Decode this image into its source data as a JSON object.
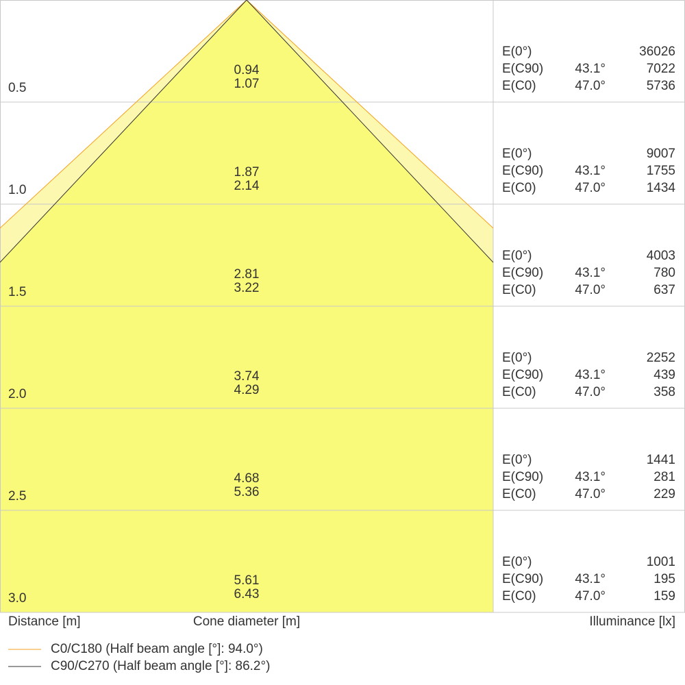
{
  "rows": [
    {
      "distance": "0.5",
      "diameters": [
        "0.94",
        "1.07"
      ],
      "illuminance": [
        {
          "label": "E(0°)",
          "value": "36026"
        },
        {
          "label": "E(C90)",
          "angle": "43.1°",
          "value": "7022"
        },
        {
          "label": "E(C0)",
          "angle": "47.0°",
          "value": "5736"
        }
      ]
    },
    {
      "distance": "1.0",
      "diameters": [
        "1.87",
        "2.14"
      ],
      "illuminance": [
        {
          "label": "E(0°)",
          "value": "9007"
        },
        {
          "label": "E(C90)",
          "angle": "43.1°",
          "value": "1755"
        },
        {
          "label": "E(C0)",
          "angle": "47.0°",
          "value": "1434"
        }
      ]
    },
    {
      "distance": "1.5",
      "diameters": [
        "2.81",
        "3.22"
      ],
      "illuminance": [
        {
          "label": "E(0°)",
          "value": "4003"
        },
        {
          "label": "E(C90)",
          "angle": "43.1°",
          "value": "780"
        },
        {
          "label": "E(C0)",
          "angle": "47.0°",
          "value": "637"
        }
      ]
    },
    {
      "distance": "2.0",
      "diameters": [
        "3.74",
        "4.29"
      ],
      "illuminance": [
        {
          "label": "E(0°)",
          "value": "2252"
        },
        {
          "label": "E(C90)",
          "angle": "43.1°",
          "value": "439"
        },
        {
          "label": "E(C0)",
          "angle": "47.0°",
          "value": "358"
        }
      ]
    },
    {
      "distance": "2.5",
      "diameters": [
        "4.68",
        "5.36"
      ],
      "illuminance": [
        {
          "label": "E(0°)",
          "value": "1441"
        },
        {
          "label": "E(C90)",
          "angle": "43.1°",
          "value": "281"
        },
        {
          "label": "E(C0)",
          "angle": "47.0°",
          "value": "229"
        }
      ]
    },
    {
      "distance": "3.0",
      "diameters": [
        "5.61",
        "6.43"
      ],
      "illuminance": [
        {
          "label": "E(0°)",
          "value": "1001"
        },
        {
          "label": "E(C90)",
          "angle": "43.1°",
          "value": "195"
        },
        {
          "label": "E(C0)",
          "angle": "47.0°",
          "value": "159"
        }
      ]
    }
  ],
  "axis_labels": {
    "distance": "Distance [m]",
    "cone": "Cone diameter [m]",
    "illuminance": "Illuminance [lx]"
  },
  "legend": [
    {
      "label": "C0/C180 (Half beam angle [°]: 94.0°)",
      "color": "#f5a020"
    },
    {
      "label": "C90/C270 (Half beam angle [°]: 86.2°)",
      "color": "#333333"
    }
  ]
}
